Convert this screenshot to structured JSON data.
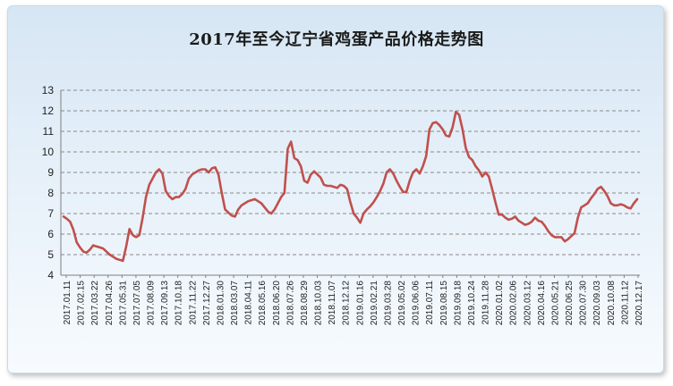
{
  "chart_data": {
    "type": "line",
    "title": "2017年至今辽宁省鸡蛋产品价格走势图",
    "xlabel": "",
    "ylabel": "",
    "ylim": [
      4,
      13
    ],
    "yticks": [
      4,
      5,
      6,
      7,
      8,
      9,
      10,
      11,
      12,
      13
    ],
    "grid": true,
    "legend": "none",
    "line_color": "#c0504d",
    "tick_labels": [
      "2017.01.11",
      "2017.02.15",
      "2017.03.22",
      "2017.04.26",
      "2017.05.31",
      "2017.07.05",
      "2017.08.09",
      "2017.09.13",
      "2017.10.18",
      "2017.11.22",
      "2017.12.27",
      "2018.01.30",
      "2018.03.07",
      "2018.04.11",
      "2018.05.16",
      "2018.06.20",
      "2018.07.26",
      "2018.08.29",
      "2018.10.03",
      "2018.11.07",
      "2018.12.12",
      "2019.01.16",
      "2019.02.21",
      "2019.03.28",
      "2019.05.02",
      "2019.06.06",
      "2019.07.11",
      "2019.08.15",
      "2019.09.18",
      "2019.10.24",
      "2019.11.28",
      "2020.01.02",
      "2020.02.06",
      "2020.03.12",
      "2020.04.16",
      "2020.05.21",
      "2020.06.25",
      "2020.07.30",
      "2020.09.03",
      "2020.10.08",
      "2020.11.12",
      "2020.12.17"
    ],
    "series": [
      {
        "values": [
          6.85,
          6.75,
          6.6,
          6.2,
          5.6,
          5.35,
          5.15,
          5.1,
          5.25,
          5.45,
          5.4,
          5.35,
          5.3,
          5.15,
          5.0,
          4.9,
          4.8,
          4.75,
          4.7,
          5.4,
          6.25,
          5.95,
          5.85,
          5.95,
          6.8,
          7.8,
          8.4,
          8.7,
          9.0,
          9.15,
          8.95,
          8.1,
          7.85,
          7.7,
          7.8,
          7.8,
          7.95,
          8.2,
          8.7,
          8.9,
          9.0,
          9.1,
          9.15,
          9.15,
          9.0,
          9.2,
          9.25,
          8.9,
          8.0,
          7.2,
          7.05,
          6.9,
          6.85,
          7.2,
          7.4,
          7.5,
          7.6,
          7.65,
          7.7,
          7.6,
          7.5,
          7.3,
          7.1,
          7.0,
          7.2,
          7.5,
          7.8,
          8.0,
          10.15,
          10.5,
          9.7,
          9.6,
          9.3,
          8.6,
          8.5,
          8.9,
          9.05,
          8.9,
          8.75,
          8.4,
          8.35,
          8.35,
          8.3,
          8.25,
          8.4,
          8.35,
          8.2,
          7.55,
          7.0,
          6.8,
          6.55,
          7.0,
          7.2,
          7.35,
          7.55,
          7.8,
          8.1,
          8.45,
          9.0,
          9.15,
          8.95,
          8.6,
          8.3,
          8.05,
          8.05,
          8.6,
          9.0,
          9.15,
          8.95,
          9.3,
          9.8,
          11.1,
          11.4,
          11.45,
          11.3,
          11.1,
          10.8,
          10.75,
          11.2,
          11.95,
          11.8,
          11.1,
          10.2,
          9.75,
          9.6,
          9.3,
          9.1,
          8.8,
          9.0,
          8.8,
          8.2,
          7.55,
          6.95,
          6.95,
          6.8,
          6.7,
          6.75,
          6.85,
          6.65,
          6.55,
          6.45,
          6.5,
          6.6,
          6.8,
          6.65,
          6.6,
          6.4,
          6.15,
          5.95,
          5.85,
          5.85,
          5.85,
          5.65,
          5.75,
          5.9,
          6.05,
          6.8,
          7.3,
          7.4,
          7.5,
          7.75,
          7.95,
          8.2,
          8.3,
          8.1,
          7.85,
          7.5,
          7.4,
          7.4,
          7.45,
          7.4,
          7.3,
          7.25,
          7.5,
          7.7
        ]
      }
    ]
  }
}
